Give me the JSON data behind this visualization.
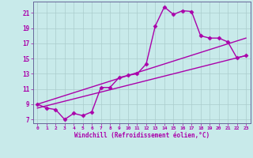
{
  "xlabel": "Windchill (Refroidissement éolien,°C)",
  "ylabel": "",
  "bg_color": "#c8eaea",
  "grid_color": "#aacccc",
  "line_color": "#aa00aa",
  "x_ticks": [
    0,
    1,
    2,
    3,
    4,
    5,
    6,
    7,
    8,
    9,
    10,
    11,
    12,
    13,
    14,
    15,
    16,
    17,
    18,
    19,
    20,
    21,
    22,
    23
  ],
  "y_ticks": [
    7,
    9,
    11,
    13,
    15,
    17,
    19,
    21
  ],
  "xlim": [
    -0.5,
    23.5
  ],
  "ylim": [
    6.5,
    22.5
  ],
  "series1_x": [
    0,
    1,
    2,
    3,
    4,
    5,
    6,
    7,
    8,
    9,
    10,
    11,
    12,
    13,
    14,
    15,
    16,
    17,
    18,
    19,
    20,
    21,
    22,
    23
  ],
  "series1_y": [
    9.0,
    8.5,
    8.3,
    7.0,
    7.8,
    7.5,
    8.0,
    11.2,
    11.2,
    12.5,
    12.8,
    13.0,
    14.3,
    19.3,
    21.8,
    20.8,
    21.3,
    21.2,
    18.0,
    17.7,
    17.7,
    17.2,
    15.1,
    15.4
  ],
  "series2_x": [
    0,
    23
  ],
  "series2_y": [
    8.5,
    15.4
  ],
  "series3_x": [
    0,
    23
  ],
  "series3_y": [
    9.0,
    17.7
  ],
  "marker": "D",
  "marker_size": 2.5,
  "linewidth": 1.0
}
